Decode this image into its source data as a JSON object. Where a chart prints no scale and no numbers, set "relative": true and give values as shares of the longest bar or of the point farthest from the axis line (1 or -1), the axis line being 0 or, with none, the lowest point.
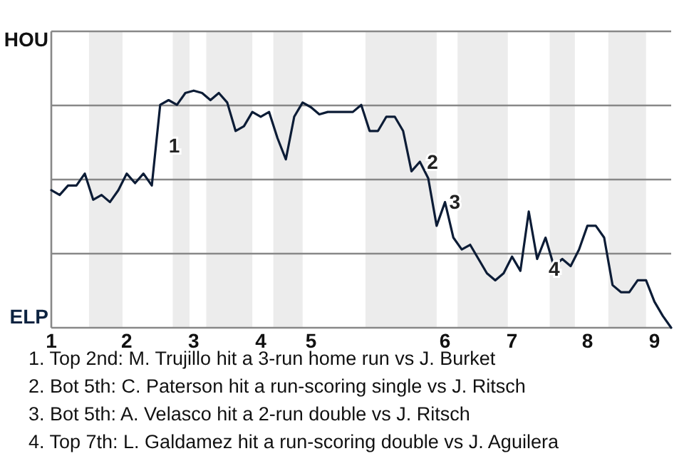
{
  "chart_data": {
    "type": "line",
    "relative": true,
    "categories": [
      "1",
      null,
      null,
      null,
      null,
      null,
      null,
      null,
      null,
      "2",
      null,
      null,
      null,
      null,
      null,
      null,
      null,
      "3",
      null,
      null,
      null,
      null,
      null,
      null,
      null,
      "4",
      null,
      null,
      null,
      null,
      null,
      "5",
      null,
      null,
      null,
      null,
      null,
      null,
      null,
      null,
      null,
      null,
      null,
      null,
      null,
      null,
      null,
      "6",
      null,
      null,
      null,
      null,
      null,
      null,
      null,
      "7",
      null,
      null,
      null,
      null,
      null,
      null,
      null,
      null,
      "8",
      null,
      null,
      null,
      null,
      null,
      null,
      null,
      "9",
      null,
      null
    ],
    "series": [
      {
        "color": "#0c1c36",
        "values": [
          0.58,
          0.56,
          0.6,
          0.6,
          0.65,
          0.54,
          0.56,
          0.53,
          0.58,
          0.65,
          0.61,
          0.65,
          0.6,
          0.94,
          0.96,
          0.94,
          0.99,
          1,
          0.99,
          0.96,
          0.99,
          0.95,
          0.83,
          0.85,
          0.91,
          0.89,
          0.91,
          0.8,
          0.71,
          0.89,
          0.95,
          0.93,
          0.9,
          0.91,
          0.91,
          0.91,
          0.91,
          0.94,
          0.83,
          0.83,
          0.89,
          0.89,
          0.83,
          0.66,
          0.7,
          0.63,
          0.43,
          0.53,
          0.38,
          0.33,
          0.35,
          0.29,
          0.23,
          0.2,
          0.23,
          0.3,
          0.24,
          0.49,
          0.29,
          0.38,
          0.26,
          0.29,
          0.26,
          0.33,
          0.43,
          0.43,
          0.38,
          0.18,
          0.15,
          0.15,
          0.2,
          0.2,
          0.11,
          0.05,
          0
        ]
      }
    ],
    "grid": "y",
    "marker": "none",
    "line_style": "solid",
    "annotations": [
      "HOU",
      "ELP",
      "1",
      "2",
      "3",
      "4",
      "1. Top 2nd: M. Trujillo hit a 3-run home run vs J. Burket",
      "2. Bot 5th: C. Paterson hit a run-scoring single vs J. Ritsch",
      "3. Bot 5th: A. Velasco hit a 2-run double vs J. Ritsch",
      "4. Top 7th: L. Galdamez hit a run-scoring double vs J. Aguilera"
    ]
  }
}
